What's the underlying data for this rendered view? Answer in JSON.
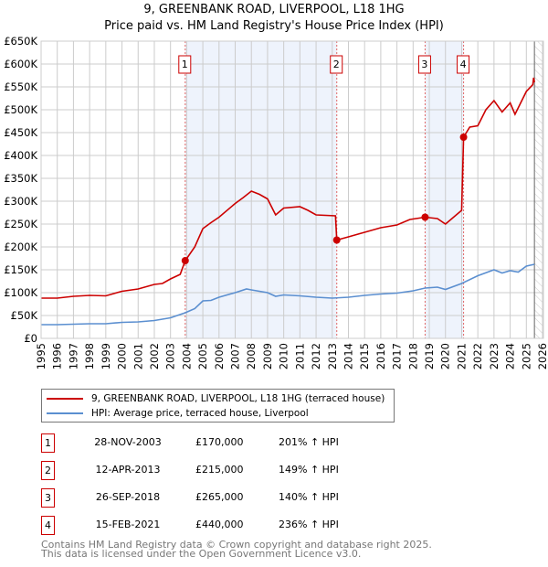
{
  "title": "9, GREENBANK ROAD, LIVERPOOL, L18 1HG",
  "subtitle": "Price paid vs. HM Land Registry's House Price Index (HPI)",
  "colors": {
    "property": "#cc0000",
    "hpi": "#5b8fd0",
    "shade": "#eef3fc"
  },
  "legend": {
    "property": "9, GREENBANK ROAD, LIVERPOOL, L18 1HG (terraced house)",
    "hpi": "HPI: Average price, terraced house, Liverpool"
  },
  "sales": [
    {
      "n": "1",
      "date": "28-NOV-2003",
      "price": "£170,000",
      "hpi": "201% ↑ HPI",
      "x": 2003.91,
      "y": 170
    },
    {
      "n": "2",
      "date": "12-APR-2013",
      "price": "£215,000",
      "hpi": "149% ↑ HPI",
      "x": 2013.28,
      "y": 215
    },
    {
      "n": "3",
      "date": "26-SEP-2018",
      "price": "£265,000",
      "hpi": "140% ↑ HPI",
      "x": 2018.74,
      "y": 265
    },
    {
      "n": "4",
      "date": "15-FEB-2021",
      "price": "£440,000",
      "hpi": "236% ↑ HPI",
      "x": 2021.12,
      "y": 440
    }
  ],
  "footer": [
    "Contains HM Land Registry data © Crown copyright and database right 2025.",
    "This data is licensed under the Open Government Licence v3.0."
  ],
  "chart_data": {
    "type": "line",
    "xlim": [
      1995,
      2026
    ],
    "ylim": [
      0,
      650
    ],
    "yunit": "£K",
    "yticks": [
      0,
      50,
      100,
      150,
      200,
      250,
      300,
      350,
      400,
      450,
      500,
      550,
      600,
      650
    ],
    "ytick_labels": [
      "£0",
      "£50K",
      "£100K",
      "£150K",
      "£200K",
      "£250K",
      "£300K",
      "£350K",
      "£400K",
      "£450K",
      "£500K",
      "£550K",
      "£600K",
      "£650K"
    ],
    "xticks": [
      1995,
      1996,
      1997,
      1998,
      1999,
      2000,
      2001,
      2002,
      2003,
      2004,
      2005,
      2006,
      2007,
      2008,
      2009,
      2010,
      2011,
      2012,
      2013,
      2014,
      2015,
      2016,
      2017,
      2018,
      2019,
      2020,
      2021,
      2022,
      2023,
      2024,
      2025,
      2026
    ],
    "grid": true,
    "forecast_from": 2025.5,
    "series": [
      {
        "name": "property",
        "points": [
          [
            1995,
            88
          ],
          [
            1996,
            88
          ],
          [
            1997,
            92
          ],
          [
            1998,
            94
          ],
          [
            1999,
            93
          ],
          [
            2000,
            103
          ],
          [
            2001,
            108
          ],
          [
            2002,
            118
          ],
          [
            2002.5,
            120
          ],
          [
            2003,
            130
          ],
          [
            2003.6,
            140
          ],
          [
            2003.91,
            170
          ],
          [
            2004.5,
            200
          ],
          [
            2005,
            240
          ],
          [
            2005.5,
            253
          ],
          [
            2006,
            265
          ],
          [
            2007,
            295
          ],
          [
            2007.5,
            308
          ],
          [
            2008,
            322
          ],
          [
            2008.5,
            315
          ],
          [
            2009,
            305
          ],
          [
            2009.5,
            270
          ],
          [
            2010,
            285
          ],
          [
            2011,
            288
          ],
          [
            2011.5,
            280
          ],
          [
            2012,
            270
          ],
          [
            2013.2,
            268
          ],
          [
            2013.28,
            215
          ],
          [
            2014,
            222
          ],
          [
            2015,
            232
          ],
          [
            2016,
            242
          ],
          [
            2017,
            248
          ],
          [
            2017.8,
            260
          ],
          [
            2018.74,
            265
          ],
          [
            2019.5,
            262
          ],
          [
            2020,
            250
          ],
          [
            2020.5,
            265
          ],
          [
            2021.0,
            280
          ],
          [
            2021.12,
            440
          ],
          [
            2021.5,
            462
          ],
          [
            2022,
            465
          ],
          [
            2022.5,
            500
          ],
          [
            2023,
            520
          ],
          [
            2023.5,
            495
          ],
          [
            2024,
            515
          ],
          [
            2024.3,
            490
          ],
          [
            2025,
            540
          ],
          [
            2025.4,
            555
          ],
          [
            2025.45,
            570
          ],
          [
            2025.5,
            560
          ]
        ]
      },
      {
        "name": "hpi",
        "points": [
          [
            1995,
            30
          ],
          [
            1996,
            30
          ],
          [
            1997,
            31
          ],
          [
            1998,
            32
          ],
          [
            1999,
            32
          ],
          [
            2000,
            35
          ],
          [
            2001,
            36
          ],
          [
            2002,
            39
          ],
          [
            2003,
            45
          ],
          [
            2003.91,
            56
          ],
          [
            2004.5,
            65
          ],
          [
            2005,
            82
          ],
          [
            2005.5,
            83
          ],
          [
            2006,
            90
          ],
          [
            2007,
            100
          ],
          [
            2007.7,
            108
          ],
          [
            2008,
            106
          ],
          [
            2009,
            100
          ],
          [
            2009.5,
            92
          ],
          [
            2010,
            95
          ],
          [
            2011,
            93
          ],
          [
            2012,
            90
          ],
          [
            2013,
            88
          ],
          [
            2014,
            90
          ],
          [
            2015,
            94
          ],
          [
            2016,
            97
          ],
          [
            2017,
            99
          ],
          [
            2018,
            104
          ],
          [
            2018.74,
            110
          ],
          [
            2019.5,
            112
          ],
          [
            2020,
            107
          ],
          [
            2021,
            120
          ],
          [
            2022,
            137
          ],
          [
            2023,
            150
          ],
          [
            2023.5,
            143
          ],
          [
            2024,
            148
          ],
          [
            2024.5,
            145
          ],
          [
            2025,
            158
          ],
          [
            2025.5,
            162
          ]
        ]
      }
    ]
  }
}
